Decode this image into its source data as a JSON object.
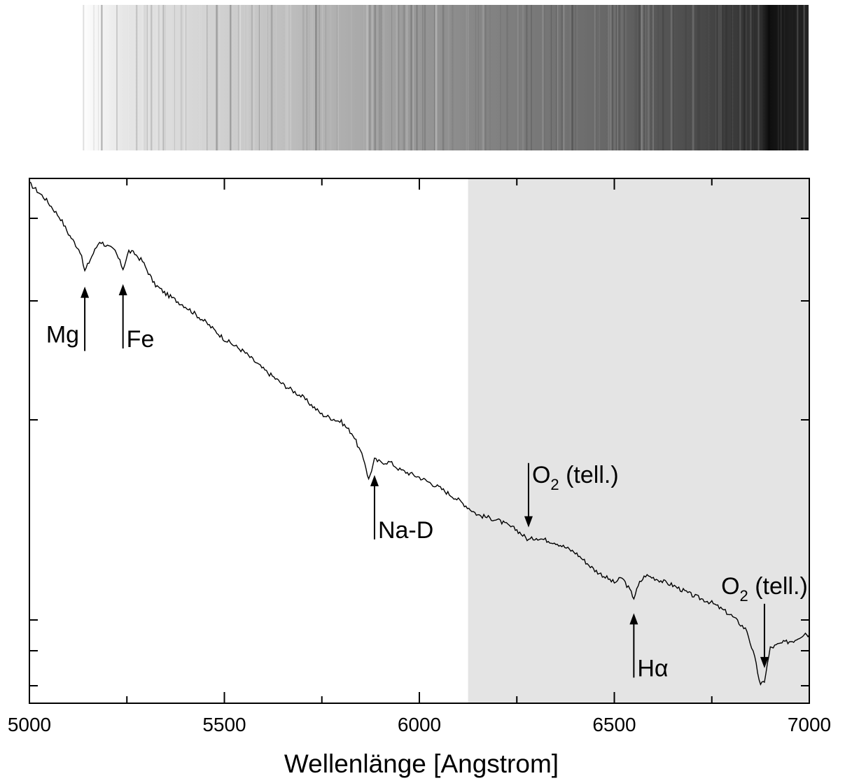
{
  "chart_data": {
    "type": "line",
    "xlabel": "Wellenlänge [Angstrom]",
    "ylabel": "",
    "xlim": [
      5000,
      7000
    ],
    "x_ticks": [
      5000,
      5500,
      6000,
      6500,
      7000
    ],
    "x_tick_labels": [
      "5000",
      "5500",
      "6000",
      "6500",
      "7000"
    ],
    "x_minor_step": 250,
    "y_axis_labels": "none",
    "grid": false,
    "shaded_region": {
      "x_start": 6125,
      "x_end": 7000,
      "color": "#e4e4e4"
    },
    "series": [
      {
        "x": [
          5000,
          5040,
          5080,
          5100,
          5130,
          5142,
          5160,
          5180,
          5200,
          5220,
          5240,
          5255,
          5270,
          5290,
          5320,
          5350,
          5400,
          5450,
          5500,
          5550,
          5600,
          5650,
          5700,
          5750,
          5800,
          5830,
          5860,
          5870,
          5885,
          5900,
          5925,
          5950,
          6000,
          6050,
          6100,
          6150,
          6200,
          6250,
          6280,
          6300,
          6350,
          6400,
          6450,
          6500,
          6520,
          6540,
          6550,
          6565,
          6580,
          6600,
          6650,
          6700,
          6750,
          6800,
          6840,
          6860,
          6875,
          6885,
          6900,
          6930,
          6960,
          6990,
          7000
        ],
        "y": [
          1.0,
          0.97,
          0.93,
          0.9,
          0.865,
          0.825,
          0.855,
          0.885,
          0.875,
          0.865,
          0.83,
          0.865,
          0.86,
          0.845,
          0.8,
          0.78,
          0.755,
          0.725,
          0.69,
          0.665,
          0.63,
          0.6,
          0.575,
          0.54,
          0.525,
          0.5,
          0.445,
          0.41,
          0.45,
          0.445,
          0.445,
          0.43,
          0.415,
          0.395,
          0.37,
          0.34,
          0.33,
          0.31,
          0.29,
          0.295,
          0.285,
          0.265,
          0.23,
          0.205,
          0.215,
          0.19,
          0.175,
          0.205,
          0.22,
          0.215,
          0.2,
          0.18,
          0.165,
          0.14,
          0.11,
          0.055,
          0.0,
          0.01,
          0.075,
          0.085,
          0.09,
          0.105,
          0.1
        ]
      }
    ],
    "annotations": [
      {
        "label": "Mg",
        "sub": "",
        "suffix": "",
        "x": 5142,
        "direction": "up",
        "text_side": "left"
      },
      {
        "label": "Fe",
        "sub": "",
        "suffix": "",
        "x": 5240,
        "direction": "up",
        "text_side": "right"
      },
      {
        "label": "Na-D",
        "sub": "",
        "suffix": "",
        "x": 5885,
        "direction": "up",
        "text_side": "right"
      },
      {
        "label": "O",
        "sub": "2",
        "suffix": " (tell.)",
        "x": 6280,
        "direction": "down",
        "text_side": "right"
      },
      {
        "label": "Hα",
        "sub": "",
        "suffix": "",
        "x": 6550,
        "direction": "up",
        "text_side": "right"
      },
      {
        "label": "O",
        "sub": "2",
        "suffix": " (tell.)",
        "x": 6885,
        "direction": "down",
        "text_side": "center"
      }
    ]
  }
}
